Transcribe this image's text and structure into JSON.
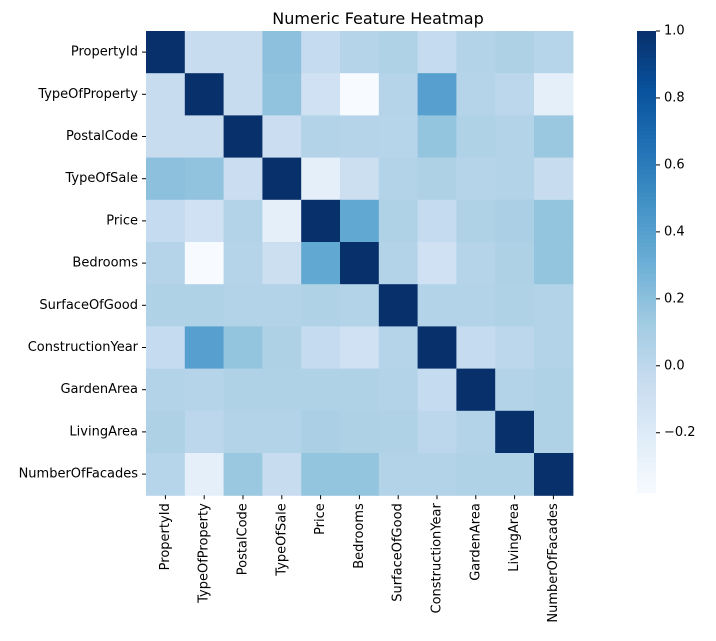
{
  "chart_data": {
    "type": "heatmap",
    "title": "Numeric Feature Heatmap",
    "xlabel": "",
    "ylabel": "",
    "colormap": "Blues",
    "vmin": -0.38,
    "vmax": 1.0,
    "colorbar_ticks": [
      1.0,
      0.8,
      0.6,
      0.4,
      0.2,
      0.0,
      -0.2
    ],
    "colorbar_tick_labels": [
      "1.0",
      "0.8",
      "0.6",
      "0.4",
      "0.2",
      "0.0",
      "−0.2"
    ],
    "rows": [
      "PropertyId",
      "TypeOfProperty",
      "PostalCode",
      "TypeOfSale",
      "Price",
      "Bedrooms",
      "SurfaceOfGood",
      "ConstructionYear",
      "GardenArea",
      "LivingArea",
      "NumberOfFacades"
    ],
    "columns": [
      "PropertyId",
      "TypeOfProperty",
      "PostalCode",
      "TypeOfSale",
      "Price",
      "Bedrooms",
      "SurfaceOfGood",
      "ConstructionYear",
      "GardenArea",
      "LivingArea",
      "NumberOfFacades"
    ],
    "values": [
      [
        1.0,
        -0.05,
        -0.05,
        0.2,
        -0.03,
        0.04,
        0.06,
        -0.03,
        0.05,
        0.07,
        0.03
      ],
      [
        -0.05,
        1.0,
        -0.05,
        0.18,
        -0.1,
        -0.38,
        0.04,
        0.4,
        0.04,
        0.01,
        -0.25
      ],
      [
        -0.05,
        -0.05,
        1.0,
        -0.07,
        0.05,
        0.04,
        0.03,
        0.17,
        0.06,
        0.05,
        0.15
      ],
      [
        0.2,
        0.18,
        -0.07,
        1.0,
        -0.25,
        -0.08,
        0.05,
        0.07,
        0.04,
        0.05,
        -0.05
      ],
      [
        -0.03,
        -0.1,
        0.05,
        -0.25,
        1.0,
        0.35,
        0.06,
        -0.03,
        0.06,
        0.08,
        0.17
      ],
      [
        0.04,
        -0.38,
        0.04,
        -0.08,
        0.35,
        1.0,
        0.05,
        -0.1,
        0.04,
        0.07,
        0.17
      ],
      [
        0.06,
        0.06,
        0.05,
        0.05,
        0.06,
        0.05,
        1.0,
        0.05,
        0.05,
        0.06,
        0.05
      ],
      [
        -0.03,
        0.4,
        0.17,
        0.07,
        -0.03,
        -0.1,
        0.04,
        1.0,
        -0.03,
        0.01,
        0.05
      ],
      [
        0.05,
        0.04,
        0.06,
        0.06,
        0.06,
        0.06,
        0.05,
        -0.03,
        1.0,
        0.05,
        0.06
      ],
      [
        0.07,
        0.01,
        0.05,
        0.05,
        0.08,
        0.07,
        0.06,
        0.01,
        0.05,
        1.0,
        0.06
      ],
      [
        0.03,
        -0.25,
        0.15,
        -0.05,
        0.17,
        0.17,
        0.05,
        0.05,
        0.06,
        0.06,
        1.0
      ]
    ]
  }
}
